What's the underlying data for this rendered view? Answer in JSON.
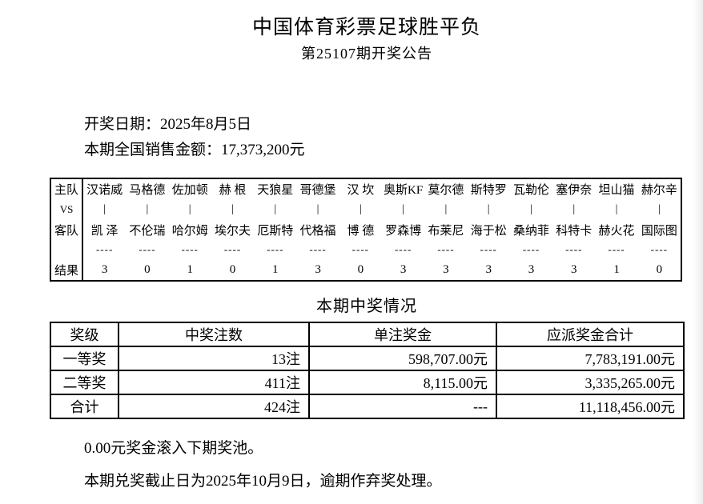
{
  "page": {
    "title": "中国体育彩票足球胜平负",
    "subtitle": "第25107期开奖公告",
    "draw_date_line": "开奖日期：2025年8月5日",
    "sales_amount_line": "本期全国销售金额：17,373,200元"
  },
  "match_table": {
    "labels": {
      "home": "主队",
      "vs": "VS",
      "away": "客队",
      "result": "结果"
    },
    "vs_bar": "|",
    "separator": "----",
    "matches": [
      {
        "home": "汉诺威",
        "away": "凯 泽",
        "result": "3"
      },
      {
        "home": "马格德",
        "away": "不伦瑞",
        "result": "0"
      },
      {
        "home": "佐加顿",
        "away": "哈尔姆",
        "result": "1"
      },
      {
        "home": "赫 根",
        "away": "埃尔夫",
        "result": "0"
      },
      {
        "home": "天狼星",
        "away": "厄斯特",
        "result": "1"
      },
      {
        "home": "哥德堡",
        "away": "代格福",
        "result": "3"
      },
      {
        "home": "汉 坎",
        "away": "博 德",
        "result": "0"
      },
      {
        "home": "奥斯KF",
        "away": "罗森博",
        "result": "3"
      },
      {
        "home": "莫尔德",
        "away": "布莱尼",
        "result": "3"
      },
      {
        "home": "斯特罗",
        "away": "海于松",
        "result": "3"
      },
      {
        "home": "瓦勒伦",
        "away": "桑纳菲",
        "result": "3"
      },
      {
        "home": "塞伊奈",
        "away": "科特卡",
        "result": "3"
      },
      {
        "home": "坦山猫",
        "away": "赫火花",
        "result": "1"
      },
      {
        "home": "赫尔辛",
        "away": "国际图",
        "result": "0"
      }
    ]
  },
  "prize_section": {
    "title": "本期中奖情况",
    "table": {
      "headers": [
        "奖级",
        "中奖注数",
        "单注奖金",
        "应派奖金合计"
      ],
      "rows": [
        [
          "一等奖",
          "13注",
          "598,707.00元",
          "7,783,191.00元"
        ],
        [
          "二等奖",
          "411注",
          "8,115.00元",
          "3,335,265.00元"
        ],
        [
          "合计",
          "424注",
          "---",
          "11,118,456.00元"
        ]
      ]
    }
  },
  "footer": {
    "rollover_line": "0.00元奖金滚入下期奖池。",
    "deadline_line": "本期兑奖截止日为2025年10月9日，逾期作弃奖处理。"
  }
}
